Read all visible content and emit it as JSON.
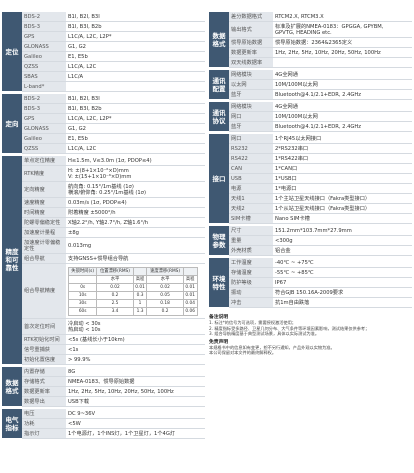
{
  "left": {
    "groups": [
      {
        "label": "定位",
        "rows": [
          {
            "name": "BDS-2",
            "value": "B1I, B2I, B3I"
          },
          {
            "name": "BDS-3",
            "value": "B1I, B3I, B2b"
          },
          {
            "name": "GPS",
            "value": "L1C/A, L2C, L2P*"
          },
          {
            "name": "GLONASS",
            "value": "G1, G2"
          },
          {
            "name": "Galileo",
            "value": "E1, E5b"
          },
          {
            "name": "QZSS",
            "value": "L1C/A, L2C"
          },
          {
            "name": "SBAS",
            "value": "L1C/A"
          },
          {
            "name": "L-band*",
            "value": ""
          }
        ]
      },
      {
        "label": "定向",
        "rows": [
          {
            "name": "BDS-2",
            "value": "B1I, B2I, B3I"
          },
          {
            "name": "BDS-3",
            "value": "B1I, B3I, B2b"
          },
          {
            "name": "GPS",
            "value": "L1C/A, L2C, L2P*"
          },
          {
            "name": "GLONASS",
            "value": "G1, G2"
          },
          {
            "name": "Galileo",
            "value": "E1, E5b"
          },
          {
            "name": "QZSS",
            "value": "L1C/A, L2C"
          }
        ]
      },
      {
        "label": "精度和可靠性",
        "rows": [
          {
            "name": "单点定位精度",
            "value": "H≤1.5m, V≤3.0m (1σ, PDOP≤4)"
          },
          {
            "name": "RTK精度",
            "value": [
              "H: ±(8+1×10⁻⁶×D)mm",
              "V: ±(15+1×10⁻⁶×D)mm"
            ]
          },
          {
            "name": "定向精度",
            "value": [
              "航向角: 0.15°/1m基线 (1σ)",
              "横滚/俯仰角: 0.25°/1m基线 (1σ)"
            ]
          },
          {
            "name": "速度精度",
            "value": "0.03m/s (1σ, PDOP≤4)"
          },
          {
            "name": "时间精度",
            "value": "附着精度 ±5000°/h"
          },
          {
            "name": "陀螺零偏稳定性",
            "value": "X轴2.2°/h, Y轴2.7°/h, Z轴1.6°/h"
          },
          {
            "name": "加速度计量程",
            "value": "±8g"
          },
          {
            "name": "加速度计零偏稳定性",
            "value": "0.013mg"
          },
          {
            "name": "组合导航",
            "value": "支持GNSS+惯导组合导航"
          },
          {
            "name": "组合导航精度",
            "table": {
              "header": [
                "失锁时间(s)",
                "位置漂移(RMS)",
                "",
                "速度漂移(RMS)",
                ""
              ],
              "sub": [
                "",
                "水平",
                "高程",
                "水平",
                "高程"
              ],
              "rows": [
                [
                  "0s",
                  "0.02",
                  "0.01",
                  "0.02",
                  "0.01"
                ],
                [
                  "10s",
                  "0.2",
                  "0.3",
                  "0.05",
                  "0.01"
                ],
                [
                  "30s",
                  "2.5",
                  "1",
                  "0.18",
                  "0.04"
                ],
                [
                  "60s",
                  "3.4",
                  "1.3",
                  "0.2",
                  "0.06"
                ]
              ]
            }
          },
          {
            "name": "首次定位时间",
            "value": [
              "冷启动 < 30s",
              "热启动 < 10s"
            ]
          },
          {
            "name": "RTK初始化时间",
            "value": "<5s (基线长小于10km)"
          },
          {
            "name": "信号重捕获",
            "value": "<1s"
          },
          {
            "name": "初始化置信度",
            "value": "> 99.9%"
          }
        ]
      },
      {
        "label": "数据格式",
        "rows": [
          {
            "name": "内置存储",
            "value": "8G"
          },
          {
            "name": "存储格式",
            "value": "NMEA-0183、惯导原始数据"
          },
          {
            "name": "数据更新率",
            "value": "1Hz, 2Hz, 5Hz, 10Hz, 20Hz, 50Hz, 100Hz"
          },
          {
            "name": "数据导出",
            "value": "USB下载"
          }
        ]
      },
      {
        "label": "电气指标",
        "rows": [
          {
            "name": "电压",
            "value": "DC 9~36V"
          },
          {
            "name": "功耗",
            "value": "<5W"
          },
          {
            "name": "指示灯",
            "value": "1个电源灯，1个INS灯，1个卫星灯，1个4G灯"
          }
        ]
      }
    ]
  },
  "right": {
    "groups": [
      {
        "label": "数据格式",
        "rows": [
          {
            "name": "差分数据格式",
            "value": "RTCM2.X, RTCM3.X"
          },
          {
            "name": "输出格式",
            "value": [
              "标准及扩展的NMEA-0183：GPGGA, GPYBM,",
              "GPVTG, HEADING etc."
            ]
          },
          {
            "name": "惯导原始数据",
            "value": "惯导原始数据：2364&2365定义"
          },
          {
            "name": "数据更新率",
            "value": "1Hz, 2Hz, 5Hz, 10Hz, 20Hz, 50Hz, 100Hz"
          },
          {
            "name": "双天线数据率",
            "value": ""
          }
        ]
      },
      {
        "label": "通讯配置",
        "rows": [
          {
            "name": "网络模块",
            "value": "4G全网通"
          },
          {
            "name": "以太网",
            "value": "10M/100M以太网"
          },
          {
            "name": "蓝牙",
            "value": "Bluetooth@4.1/2.1+EDR, 2.4GHz"
          }
        ]
      },
      {
        "label": "通讯协议",
        "rows": [
          {
            "name": "网络模块",
            "value": "4G全网通"
          },
          {
            "name": "网口",
            "value": "10M/100M以太网"
          },
          {
            "name": "蓝牙",
            "value": "Bluetooth@4.1/2.1+EDR, 2.4GHz"
          }
        ]
      },
      {
        "label": "接口",
        "rows": [
          {
            "name": "网口",
            "value": "1个RJ45以太网接口"
          },
          {
            "name": "RS232",
            "value": "2*RS232串口"
          },
          {
            "name": "RS422",
            "value": "1*RS422串口"
          },
          {
            "name": "CAN",
            "value": "1*CAN口"
          },
          {
            "name": "USB",
            "value": "1*USB口"
          },
          {
            "name": "电源",
            "value": "1*电源口"
          },
          {
            "name": "天线1",
            "value": "1个主站卫星天线接口（Fakra类型接口）"
          },
          {
            "name": "天线2",
            "value": "1个从站卫星天线接口（Fakra类型接口）"
          },
          {
            "name": "SIM卡槽",
            "value": "Nano SIM卡槽"
          }
        ]
      },
      {
        "label": "物理参数",
        "rows": [
          {
            "name": "尺寸",
            "value": "151.2mm*103.7mm*27.9mm"
          },
          {
            "name": "重量",
            "value": "<300g"
          },
          {
            "name": "外壳材质",
            "value": "铝合金"
          }
        ]
      },
      {
        "label": "环境特性",
        "rows": [
          {
            "name": "工作温度",
            "value": "-40℃ ~ +75℃"
          },
          {
            "name": "存储温度",
            "value": "-55℃ ~ +85℃"
          },
          {
            "name": "防护等级",
            "value": "IP67"
          },
          {
            "name": "振动",
            "value": "符合GJB 150.16A-2009要求"
          },
          {
            "name": "冲击",
            "value": "抗1m自由跌落"
          }
        ]
      }
    ]
  },
  "notes": {
    "title": "备注说明",
    "lines": [
      "1. 标注*的信号为可选项，需要授权激活使用；",
      "2. 精度指标受多路径、卫星几何分布、大气条件等环境因素影响，测试结果仅供参考；",
      "3. 组合导航精度基于典型测试场景，具体以实际测试为准。"
    ]
  },
  "disclaimer": {
    "title": "免责声明",
    "lines": [
      "本规格书中的信息如有变更，恕不另行通知，产品外观以实物为准。",
      "本公司保留对本文件的最终解释权。"
    ]
  }
}
